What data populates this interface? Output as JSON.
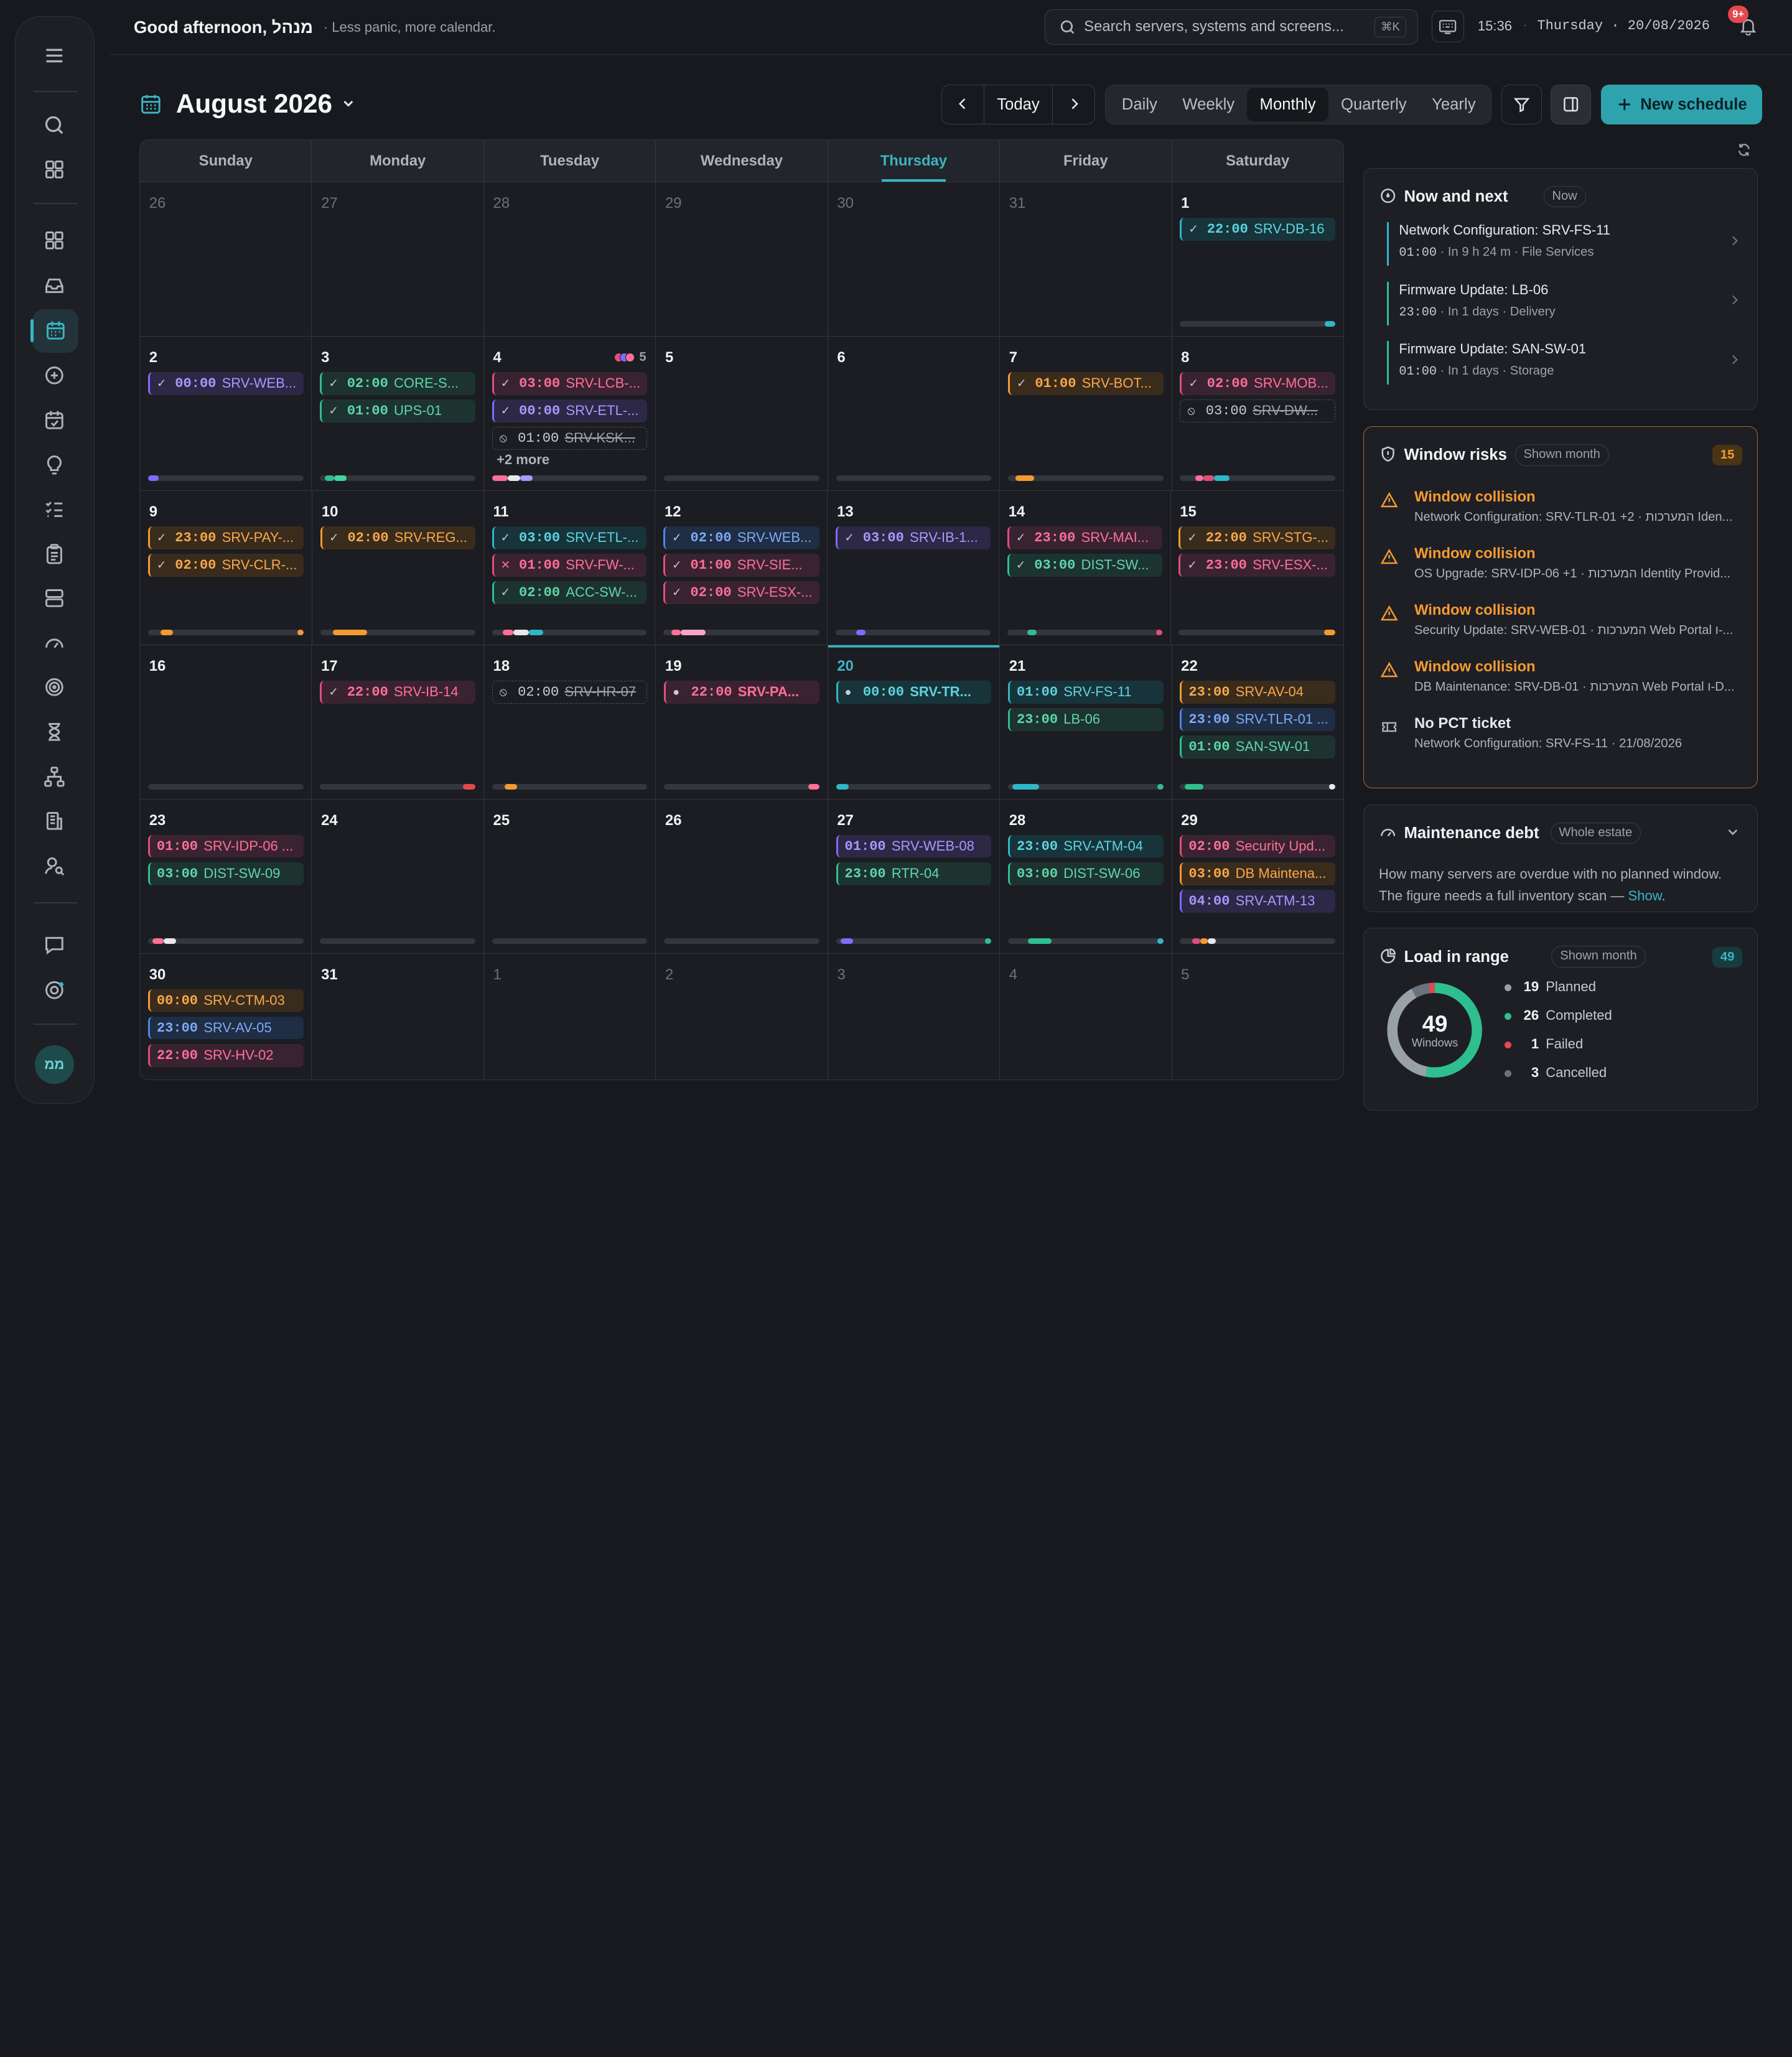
{
  "header": {
    "greeting": "Good afternoon, מנהל",
    "tagline": "· Less panic, more calendar.",
    "search_placeholder": "Search servers, systems and screens...",
    "shortcut": "⌘K",
    "time": "15:36",
    "dot": "·",
    "date": "Thursday · 20/08/2026",
    "notif_count": "9+"
  },
  "user": {
    "initials": "ממ"
  },
  "toolbar": {
    "month": "August 2026",
    "today": "Today",
    "views": [
      "Daily",
      "Weekly",
      "Monthly",
      "Quarterly",
      "Yearly"
    ],
    "active_view": "Monthly",
    "new_schedule": "New schedule"
  },
  "calendar": {
    "weekdays": [
      "Sunday",
      "Monday",
      "Tuesday",
      "Wednesday",
      "Thursday",
      "Friday",
      "Saturday"
    ],
    "current_weekday": "Thursday",
    "weeks": [
      [
        {
          "d": "26",
          "out": true
        },
        {
          "d": "27",
          "out": true
        },
        {
          "d": "28",
          "out": true
        },
        {
          "d": "29",
          "out": true
        },
        {
          "d": "30",
          "out": true
        },
        {
          "d": "31",
          "out": true
        },
        {
          "d": "1",
          "events": [
            {
              "s": "check",
              "t": "22:00",
              "n": "SRV-DB-16",
              "c": "teal"
            }
          ],
          "bar": [
            {
              "f": 0.93,
              "w": 0.07,
              "c": "#2fb7c8"
            }
          ]
        }
      ],
      [
        {
          "d": "2",
          "events": [
            {
              "s": "check",
              "t": "00:00",
              "n": "SRV-WEB...",
              "c": "purple"
            }
          ],
          "bar": [
            {
              "f": 0,
              "w": 0.07,
              "c": "#7f6bff"
            }
          ]
        },
        {
          "d": "3",
          "events": [
            {
              "s": "check",
              "t": "02:00",
              "n": "CORE-S...",
              "c": "green"
            },
            {
              "s": "check",
              "t": "01:00",
              "n": "UPS-01",
              "c": "green"
            }
          ],
          "bar": [
            {
              "f": 0.03,
              "w": 0.06,
              "c": "#2fbf8f"
            },
            {
              "f": 0.09,
              "w": 0.08,
              "c": "#3fd6a0"
            }
          ]
        },
        {
          "d": "4",
          "dots": [
            "#e24d7b",
            "#7f6bff",
            "#ff6f98"
          ],
          "count": "5",
          "events": [
            {
              "s": "check",
              "t": "03:00",
              "n": "SRV-LCB-...",
              "c": "pink"
            },
            {
              "s": "check",
              "t": "00:00",
              "n": "SRV-ETL-...",
              "c": "purple"
            },
            {
              "s": "cancel",
              "t": "01:00",
              "n": "SRV-KSK...",
              "c": "dash"
            }
          ],
          "more": "+2 more",
          "bar": [
            {
              "f": 0,
              "w": 0.1,
              "c": "#ff6f98"
            },
            {
              "f": 0.1,
              "w": 0.08,
              "c": "#e6e8eb"
            },
            {
              "f": 0.18,
              "w": 0.08,
              "c": "#a898ff"
            }
          ]
        },
        {
          "d": "5",
          "bar": []
        },
        {
          "d": "6",
          "bar": []
        },
        {
          "d": "7",
          "events": [
            {
              "s": "check",
              "t": "01:00",
              "n": "SRV-BOT...",
              "c": "orange"
            }
          ],
          "bar": [
            {
              "f": 0.05,
              "w": 0.12,
              "c": "#f59a32"
            }
          ]
        },
        {
          "d": "8",
          "events": [
            {
              "s": "check",
              "t": "02:00",
              "n": "SRV-MOB...",
              "c": "pink"
            },
            {
              "s": "cancel",
              "t": "03:00",
              "n": "SRV-DW...",
              "c": "dash"
            }
          ],
          "bar": [
            {
              "f": 0.1,
              "w": 0.05,
              "c": "#ff6f98"
            },
            {
              "f": 0.15,
              "w": 0.07,
              "c": "#e24d7b"
            },
            {
              "f": 0.22,
              "w": 0.1,
              "c": "#2fb7c8"
            }
          ]
        }
      ],
      [
        {
          "d": "9",
          "events": [
            {
              "s": "check",
              "t": "23:00",
              "n": "SRV-PAY-...",
              "c": "orange"
            },
            {
              "s": "check",
              "t": "02:00",
              "n": "SRV-CLR-...",
              "c": "orange"
            }
          ],
          "bar": [
            {
              "f": 0.08,
              "w": 0.08,
              "c": "#f59a32"
            },
            {
              "f": 0.96,
              "w": 0.04,
              "c": "#f59a32"
            }
          ]
        },
        {
          "d": "10",
          "events": [
            {
              "s": "check",
              "t": "02:00",
              "n": "SRV-REG...",
              "c": "orange"
            }
          ],
          "bar": [
            {
              "f": 0.08,
              "w": 0.22,
              "c": "#f59a32"
            }
          ]
        },
        {
          "d": "11",
          "events": [
            {
              "s": "check",
              "t": "03:00",
              "n": "SRV-ETL-...",
              "c": "teal"
            },
            {
              "s": "fail",
              "t": "01:00",
              "n": "SRV-FW-...",
              "c": "pink"
            },
            {
              "s": "check",
              "t": "02:00",
              "n": "ACC-SW-...",
              "c": "green"
            }
          ],
          "bar": [
            {
              "f": 0.07,
              "w": 0.07,
              "c": "#ff6f98"
            },
            {
              "f": 0.14,
              "w": 0.1,
              "c": "#e6e8eb"
            },
            {
              "f": 0.24,
              "w": 0.09,
              "c": "#2fb7c8"
            }
          ]
        },
        {
          "d": "12",
          "events": [
            {
              "s": "check",
              "t": "02:00",
              "n": "SRV-WEB...",
              "c": "blue"
            },
            {
              "s": "check",
              "t": "01:00",
              "n": "SRV-SIE...",
              "c": "pink"
            },
            {
              "s": "check",
              "t": "02:00",
              "n": "SRV-ESX-...",
              "c": "pink"
            }
          ],
          "bar": [
            {
              "f": 0.05,
              "w": 0.06,
              "c": "#ff6f98"
            },
            {
              "f": 0.11,
              "w": 0.16,
              "c": "#f3a6c7"
            }
          ]
        },
        {
          "d": "13",
          "events": [
            {
              "s": "check",
              "t": "03:00",
              "n": "SRV-IB-1...",
              "c": "purple"
            }
          ],
          "bar": [
            {
              "f": 0.13,
              "w": 0.06,
              "c": "#7f6bff"
            }
          ]
        },
        {
          "d": "14",
          "events": [
            {
              "s": "check",
              "t": "23:00",
              "n": "SRV-MAI...",
              "c": "pink"
            },
            {
              "s": "check",
              "t": "03:00",
              "n": "DIST-SW...",
              "c": "green"
            }
          ],
          "bar": [
            {
              "f": 0.13,
              "w": 0.06,
              "c": "#2fbf8f"
            },
            {
              "f": 0.96,
              "w": 0.04,
              "c": "#e24d7b"
            }
          ]
        },
        {
          "d": "15",
          "events": [
            {
              "s": "check",
              "t": "22:00",
              "n": "SRV-STG-...",
              "c": "orange"
            },
            {
              "s": "check",
              "t": "23:00",
              "n": "SRV-ESX-...",
              "c": "pink"
            }
          ],
          "bar": [
            {
              "f": 0.93,
              "w": 0.07,
              "c": "#f59a32"
            }
          ]
        }
      ],
      [
        {
          "d": "16",
          "bar": []
        },
        {
          "d": "17",
          "events": [
            {
              "s": "check",
              "t": "22:00",
              "n": "SRV-IB-14",
              "c": "pink"
            }
          ],
          "bar": [
            {
              "f": 0.92,
              "w": 0.08,
              "c": "#e2484d"
            }
          ]
        },
        {
          "d": "18",
          "events": [
            {
              "s": "cancel",
              "t": "02:00",
              "n": "SRV-HR-07",
              "c": "dash"
            }
          ],
          "bar": [
            {
              "f": 0.08,
              "w": 0.08,
              "c": "#f59a32"
            }
          ]
        },
        {
          "d": "19",
          "events": [
            {
              "s": "dot",
              "t": "22:00",
              "n": "SRV-PA...",
              "c": "pink",
              "bold": true
            }
          ],
          "bar": [
            {
              "f": 0.93,
              "w": 0.07,
              "c": "#ff6f98"
            }
          ]
        },
        {
          "d": "20",
          "today": true,
          "events": [
            {
              "s": "dot",
              "t": "00:00",
              "n": "SRV-TR...",
              "c": "teal",
              "bold": true
            }
          ],
          "bar": [
            {
              "f": 0,
              "w": 0.08,
              "c": "#2fb7c8"
            }
          ]
        },
        {
          "d": "21",
          "events": [
            {
              "s": "none",
              "t": "01:00",
              "n": "SRV-FS-11",
              "c": "teal"
            },
            {
              "s": "none",
              "t": "23:00",
              "n": "LB-06",
              "c": "green"
            }
          ],
          "bar": [
            {
              "f": 0.03,
              "w": 0.17,
              "c": "#2fb7c8"
            },
            {
              "f": 0.96,
              "w": 0.04,
              "c": "#2fbf8f"
            }
          ]
        },
        {
          "d": "22",
          "events": [
            {
              "s": "none",
              "t": "23:00",
              "n": "SRV-AV-04",
              "c": "orange"
            },
            {
              "s": "none",
              "t": "23:00",
              "n": "SRV-TLR-01 ...",
              "c": "blue"
            },
            {
              "s": "none",
              "t": "01:00",
              "n": "SAN-SW-01",
              "c": "green"
            }
          ],
          "bar": [
            {
              "f": 0.03,
              "w": 0.12,
              "c": "#2fbf8f"
            },
            {
              "f": 0.96,
              "w": 0.04,
              "c": "#e6e8eb"
            }
          ]
        }
      ],
      [
        {
          "d": "23",
          "events": [
            {
              "s": "none",
              "t": "01:00",
              "n": "SRV-IDP-06 ...",
              "c": "pink"
            },
            {
              "s": "none",
              "t": "03:00",
              "n": "DIST-SW-09",
              "c": "green"
            }
          ],
          "bar": [
            {
              "f": 0.03,
              "w": 0.07,
              "c": "#ff6f98"
            },
            {
              "f": 0.1,
              "w": 0.08,
              "c": "#e6e8eb"
            }
          ]
        },
        {
          "d": "24",
          "bar": []
        },
        {
          "d": "25",
          "bar": []
        },
        {
          "d": "26",
          "bar": []
        },
        {
          "d": "27",
          "events": [
            {
              "s": "none",
              "t": "01:00",
              "n": "SRV-WEB-08",
              "c": "purple"
            },
            {
              "s": "none",
              "t": "23:00",
              "n": "RTR-04",
              "c": "green"
            }
          ],
          "bar": [
            {
              "f": 0.03,
              "w": 0.08,
              "c": "#7f6bff"
            },
            {
              "f": 0.96,
              "w": 0.04,
              "c": "#2fbf8f"
            }
          ]
        },
        {
          "d": "28",
          "events": [
            {
              "s": "none",
              "t": "23:00",
              "n": "SRV-ATM-04",
              "c": "teal"
            },
            {
              "s": "none",
              "t": "03:00",
              "n": "DIST-SW-06",
              "c": "green"
            }
          ],
          "bar": [
            {
              "f": 0.13,
              "w": 0.15,
              "c": "#2fbf8f"
            },
            {
              "f": 0.96,
              "w": 0.04,
              "c": "#2fb7c8"
            }
          ]
        },
        {
          "d": "29",
          "events": [
            {
              "s": "none",
              "t": "02:00",
              "n": "Security Upd...",
              "c": "pink"
            },
            {
              "s": "none",
              "t": "03:00",
              "n": "DB Maintena...",
              "c": "orange"
            },
            {
              "s": "none",
              "t": "04:00",
              "n": "SRV-ATM-13",
              "c": "purple"
            }
          ],
          "bar": [
            {
              "f": 0.08,
              "w": 0.05,
              "c": "#e24d7b"
            },
            {
              "f": 0.13,
              "w": 0.05,
              "c": "#f59a32"
            },
            {
              "f": 0.18,
              "w": 0.05,
              "c": "#e6e8eb"
            }
          ]
        }
      ],
      [
        {
          "d": "30",
          "events": [
            {
              "s": "none",
              "t": "00:00",
              "n": "SRV-CTM-03",
              "c": "orange"
            },
            {
              "s": "none",
              "t": "23:00",
              "n": "SRV-AV-05",
              "c": "blue"
            },
            {
              "s": "none",
              "t": "22:00",
              "n": "SRV-HV-02",
              "c": "pink"
            }
          ]
        },
        {
          "d": "31"
        },
        {
          "d": "1",
          "out": true
        },
        {
          "d": "2",
          "out": true
        },
        {
          "d": "3",
          "out": true
        },
        {
          "d": "4",
          "out": true
        },
        {
          "d": "5",
          "out": true
        }
      ]
    ]
  },
  "now_next": {
    "title": "Now and next",
    "pill": "Now",
    "items": [
      {
        "title": "Network Configuration: SRV-FS-11",
        "time": "01:00",
        "meta": "· In 9 h 24 m · File Services",
        "color": "#2fb7c8"
      },
      {
        "title": "Firmware Update: LB-06",
        "time": "23:00",
        "meta": "· In 1 days · Delivery",
        "color": "#2fbf8f"
      },
      {
        "title": "Firmware Update: SAN-SW-01",
        "time": "01:00",
        "meta": "· In 1 days · Storage",
        "color": "#2fbf8f"
      }
    ]
  },
  "risks": {
    "title": "Window risks",
    "pill": "Shown month",
    "count": "15",
    "items": [
      {
        "title": "Window collision",
        "detail": "Network Configuration: SRV-TLR-01 +2 · המערכות Iden...",
        "warn": true
      },
      {
        "title": "Window collision",
        "detail": "OS Upgrade: SRV-IDP-06 +1 · המערכות Identity Provid...",
        "warn": true
      },
      {
        "title": "Window collision",
        "detail": "Security Update: SRV-WEB-01 · המערכות Web Portal ו-...",
        "warn": true
      },
      {
        "title": "Window collision",
        "detail": "DB Maintenance: SRV-DB-01 · המערכות Web Portal ו-D...",
        "warn": true
      },
      {
        "title": "No PCT ticket",
        "detail": "Network Configuration: SRV-FS-11 · 21/08/2026",
        "warn": false
      },
      {
        "title": "No PCT ticket",
        "detail": "",
        "warn": false
      }
    ]
  },
  "debt": {
    "title": "Maintenance debt",
    "pill": "Whole estate",
    "text": "How many servers are overdue with no planned window. The figure needs a full inventory scan —",
    "link": "Show"
  },
  "load": {
    "title": "Load in range",
    "pill": "Shown month",
    "count": "49",
    "total": "49",
    "unit": "Windows",
    "segments": [
      {
        "label": "Planned",
        "value": 19,
        "color": "#9aa0a8"
      },
      {
        "label": "Completed",
        "value": 26,
        "color": "#2fbf8f"
      },
      {
        "label": "Failed",
        "value": 1,
        "color": "#e2484d"
      },
      {
        "label": "Cancelled",
        "value": 3,
        "color": "#6c727b"
      }
    ]
  }
}
